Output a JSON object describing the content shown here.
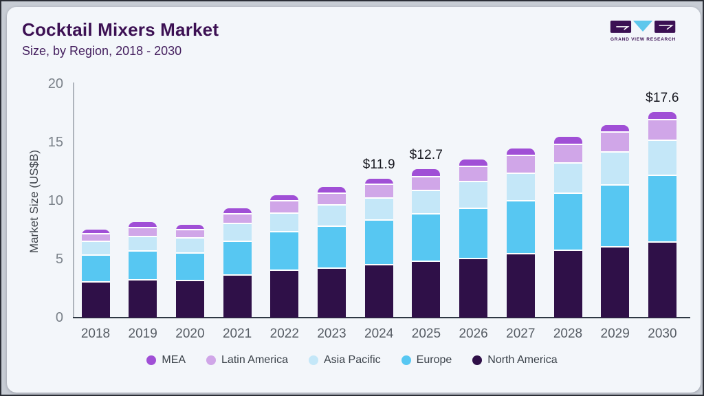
{
  "header": {
    "title": "Cocktail Mixers Market",
    "subtitle": "Size, by Region, 2018 - 2030",
    "logo_text": "GRAND VIEW RESEARCH"
  },
  "colors": {
    "title_purple": "#3c1053",
    "card_background": "#f3f6fa",
    "logo_dark": "#3b1053",
    "logo_blue": "#5ec7ec",
    "axis_spine": "#aeb4bc",
    "baseline": "#2e3743"
  },
  "chart_data": {
    "type": "bar",
    "stacked": true,
    "title": "Cocktail Mixers Market Size, by Region, 2018 - 2030",
    "xlabel": "",
    "ylabel": "Market Size (US$B)",
    "ylim": [
      0,
      20
    ],
    "yticks": [
      0,
      5,
      10,
      15,
      20
    ],
    "grid": false,
    "legend_position": "bottom",
    "categories": [
      "2018",
      "2019",
      "2020",
      "2021",
      "2022",
      "2023",
      "2024",
      "2025",
      "2026",
      "2027",
      "2028",
      "2029",
      "2030"
    ],
    "series": [
      {
        "name": "North America",
        "color": "#2f1048",
        "values": [
          3.0,
          3.2,
          3.1,
          3.6,
          4.0,
          4.2,
          4.5,
          4.75,
          5.0,
          5.4,
          5.7,
          6.0,
          6.4
        ]
      },
      {
        "name": "Europe",
        "color": "#57c7f2",
        "values": [
          2.3,
          2.45,
          2.35,
          2.9,
          3.3,
          3.55,
          3.8,
          4.05,
          4.3,
          4.55,
          4.9,
          5.3,
          5.7
        ]
      },
      {
        "name": "Asia Pacific",
        "color": "#c4e7f8",
        "values": [
          1.15,
          1.25,
          1.3,
          1.5,
          1.6,
          1.85,
          1.85,
          2.0,
          2.3,
          2.35,
          2.6,
          2.8,
          3.0
        ]
      },
      {
        "name": "Latin America",
        "color": "#d0a6e8",
        "values": [
          0.65,
          0.75,
          0.75,
          0.85,
          1.05,
          1.0,
          1.2,
          1.2,
          1.3,
          1.5,
          1.55,
          1.7,
          1.8
        ]
      },
      {
        "name": "MEA",
        "color": "#a04fd6",
        "values": [
          0.45,
          0.5,
          0.45,
          0.5,
          0.55,
          0.6,
          0.55,
          0.7,
          0.65,
          0.65,
          0.75,
          0.7,
          0.7
        ]
      }
    ],
    "annotations": [
      {
        "category": "2024",
        "label": "$11.9"
      },
      {
        "category": "2025",
        "label": "$12.7"
      },
      {
        "category": "2030",
        "label": "$17.6"
      }
    ],
    "legend": [
      "MEA",
      "Latin America",
      "Asia Pacific",
      "Europe",
      "North America"
    ]
  }
}
